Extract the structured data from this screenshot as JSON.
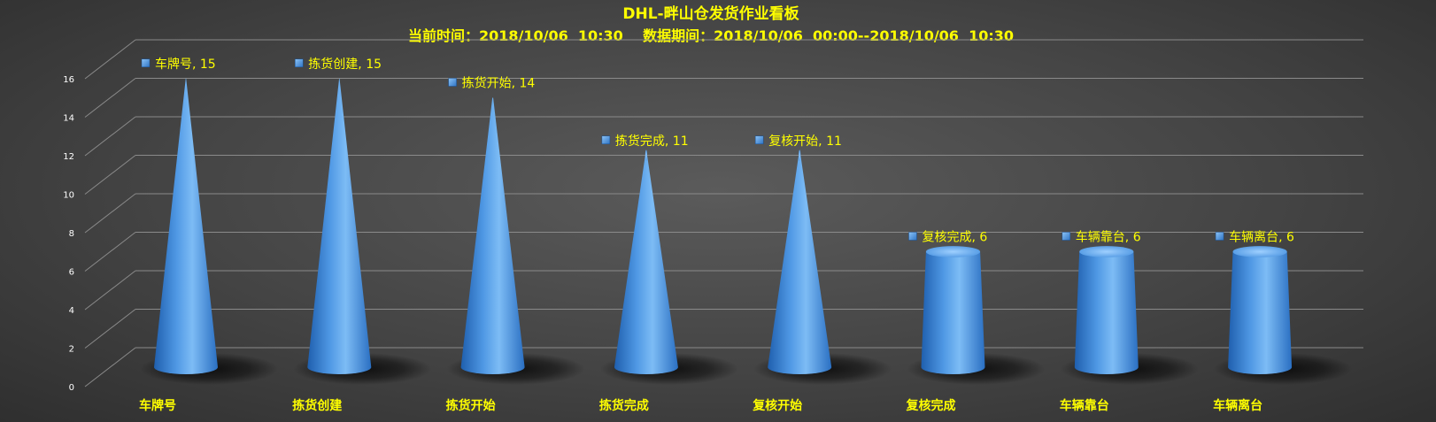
{
  "chart_data": {
    "type": "bar",
    "shape": "3d-cone",
    "title": "DHL-畔山仓发货作业看板",
    "subtitle": "当前时间：2018/10/06  10:30    数据期间：2018/10/06  00:00--2018/10/06  10:30",
    "categories": [
      "车牌号",
      "拣货创建",
      "拣货开始",
      "拣货完成",
      "复核开始",
      "复核完成",
      "车辆靠台",
      "车辆离台"
    ],
    "values": [
      15,
      15,
      14,
      11,
      11,
      6,
      6,
      6
    ],
    "data_labels": [
      "车牌号, 15",
      "拣货创建, 15",
      "拣货开始, 14",
      "拣货完成, 11",
      "复核开始, 11",
      "复核完成, 6",
      "车辆靠台, 6",
      "车辆离台, 6"
    ],
    "yticks": [
      "0",
      "2",
      "4",
      "6",
      "8",
      "10",
      "12",
      "14",
      "16"
    ],
    "ylim": [
      0,
      16
    ],
    "grid": true,
    "colors": {
      "bar": "#4a90d9",
      "label": "#ffff00",
      "tick": "#ffffff",
      "grid": "#8a8a8a"
    }
  }
}
